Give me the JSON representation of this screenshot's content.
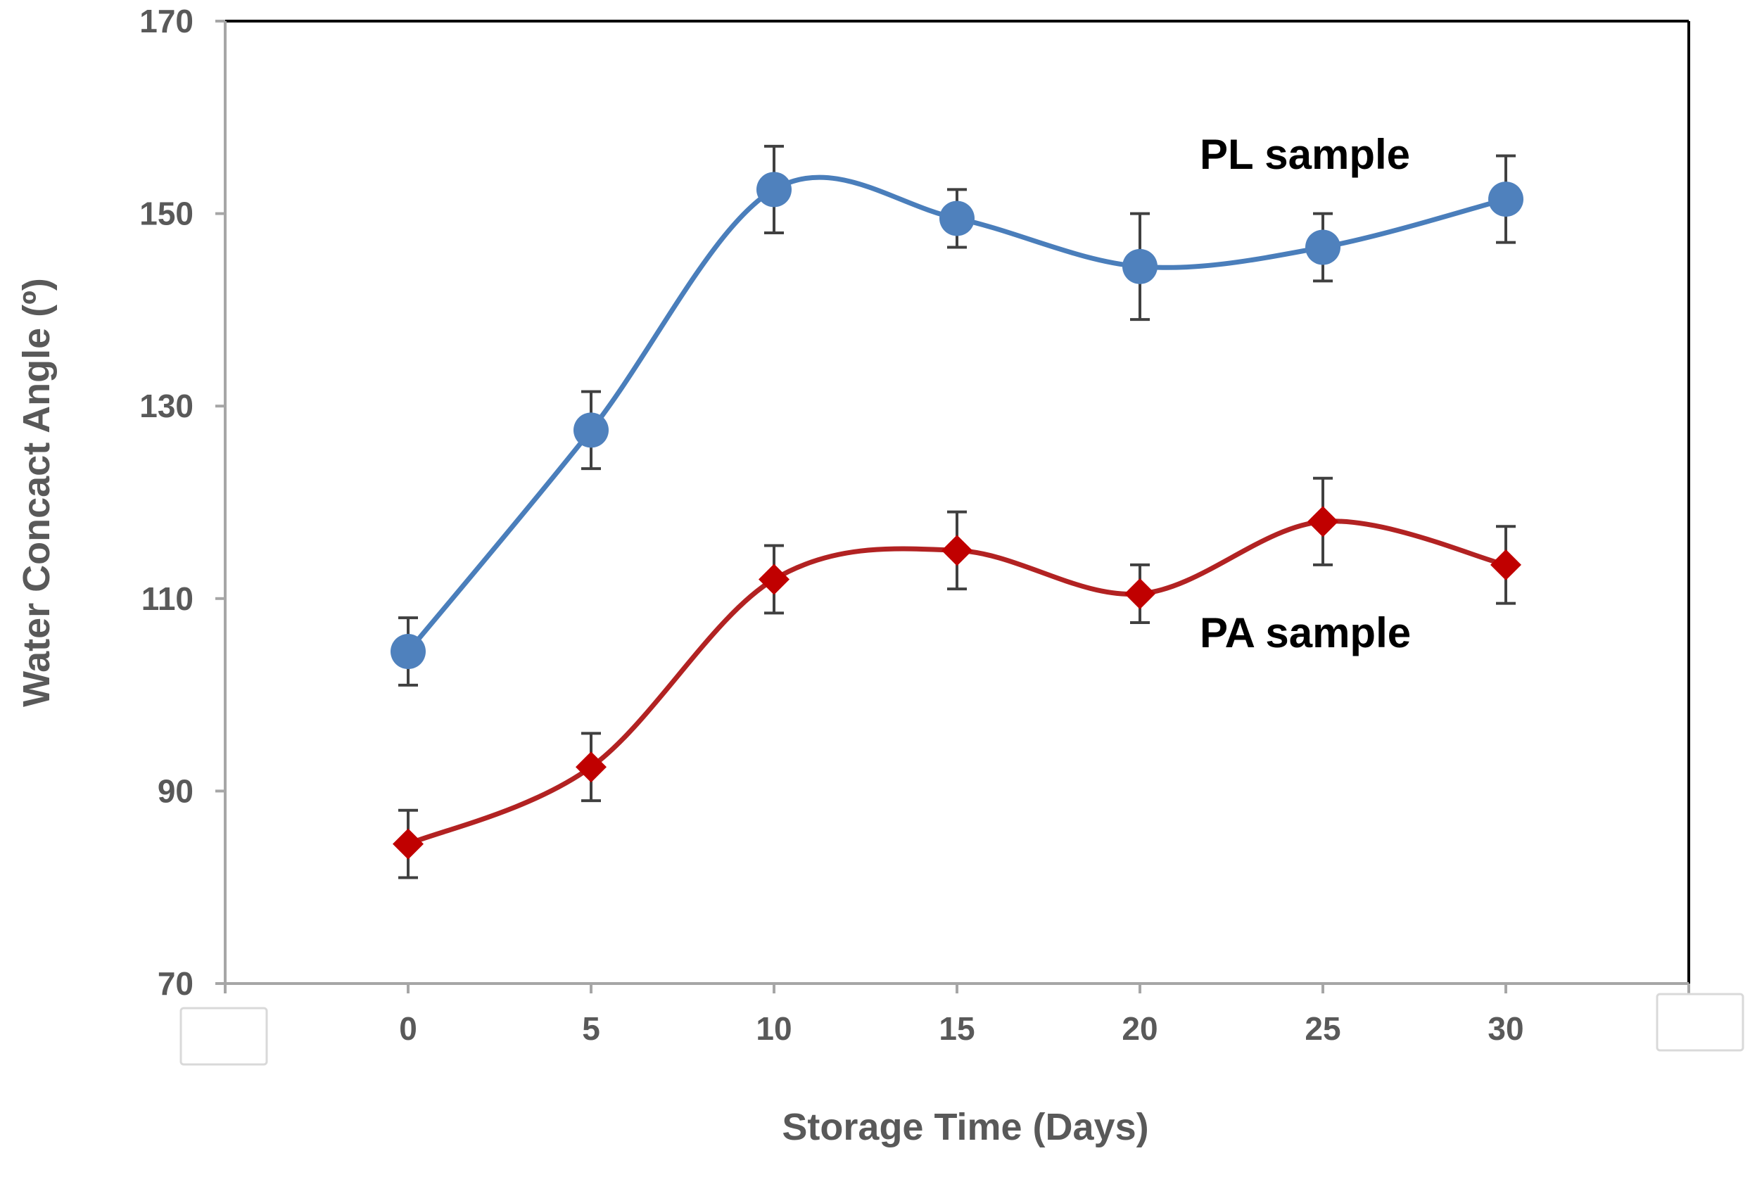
{
  "chart_data": {
    "type": "line",
    "xlabel": "Storage Time (Days)",
    "ylabel": "Water Concact Angle (º)",
    "xlim": [
      -5,
      35
    ],
    "ylim": [
      70,
      170
    ],
    "x_ticks": [
      0,
      5,
      10,
      15,
      20,
      25,
      30
    ],
    "x_tick_labels": [
      "0",
      "5",
      "10",
      "15",
      "20",
      "25",
      "30"
    ],
    "y_ticks": [
      70,
      90,
      110,
      130,
      150,
      170
    ],
    "y_tick_labels": [
      "70",
      "90",
      "110",
      "130",
      "150",
      "170"
    ],
    "grid": false,
    "smooth": true,
    "series": [
      {
        "name": "PL sample",
        "marker": "circle",
        "color": "#4A7EBB",
        "marker_color": "#4F81BD",
        "x": [
          0,
          5,
          10,
          15,
          20,
          25,
          30
        ],
        "values": [
          104.5,
          127.5,
          152.5,
          149.5,
          144.5,
          146.5,
          151.5
        ],
        "error": [
          3.5,
          4,
          4.5,
          3,
          5.5,
          3.5,
          4.5
        ]
      },
      {
        "name": "PA sample",
        "marker": "diamond",
        "color": "#B22222",
        "marker_color": "#C00000",
        "x": [
          0,
          5,
          10,
          15,
          20,
          25,
          30
        ],
        "values": [
          84.5,
          92.5,
          112,
          115,
          110.5,
          118,
          113.5
        ],
        "error": [
          3.5,
          3.5,
          3.5,
          4,
          3,
          4.5,
          4
        ]
      }
    ],
    "annotations": [
      {
        "text": "PL sample",
        "series": "PL sample"
      },
      {
        "text": "PA sample",
        "series": "PA sample"
      }
    ]
  }
}
